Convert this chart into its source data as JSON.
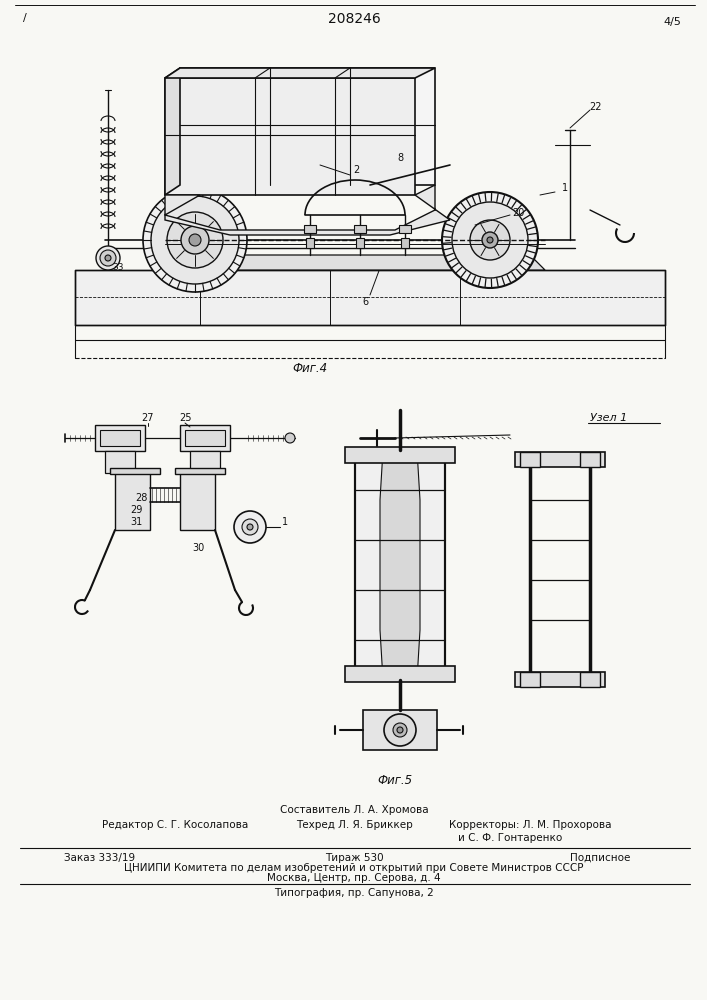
{
  "patent_number": "208246",
  "page_mark_top_left": "/",
  "page_mark_top_right": "4/5",
  "fig4_label": "Фиг.4",
  "fig5_label": "Фиг.5",
  "uzell_label": "Узел 1",
  "footer_compiled": "Составитель Л. А. Хромова",
  "footer_editor": "Редактор С. Г. Косолапова",
  "footer_tech": "Техред Л. Я. Бриккер",
  "footer_corr": "Корректоры: Л. М. Прохорова",
  "footer_corr2": "и С. Ф. Гонтаренко",
  "footer_order": "Заказ 333/19",
  "footer_tirazh": "Тираж 530",
  "footer_podp": "Подписное",
  "footer_org": "ЦНИИПИ Комитета по делам изобретений и открытий при Совете Министров СССР",
  "footer_addr": "Москва, Центр, пр. Серова, д. 4",
  "footer_tip": "Типография, пр. Сапунова, 2",
  "bg_color": "#f8f8f4",
  "lc": "#111111"
}
